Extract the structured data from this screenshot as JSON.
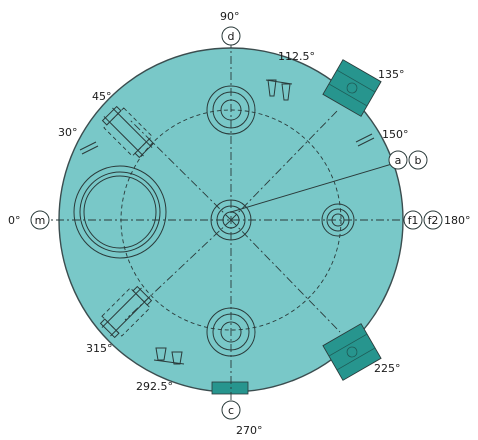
{
  "diagram": {
    "colors": {
      "vessel": "#79c8c8",
      "vessel_outline": "#3b4d4f",
      "nozzle_block": "#27958e",
      "line": "#2a3a3a",
      "background": "#ffffff"
    },
    "angle_labels": {
      "a0": "0°",
      "a30": "30°",
      "a45": "45°",
      "a90": "90°",
      "a112": "112.5°",
      "a135": "135°",
      "a150": "150°",
      "a180": "180°",
      "a225": "225°",
      "a270": "270°",
      "a292": "292.5°",
      "a315": "315°"
    },
    "nozzle_tags": {
      "m": "m",
      "d": "d",
      "c": "c",
      "a": "a",
      "b": "b",
      "f1": "f1",
      "f2": "f2"
    }
  }
}
